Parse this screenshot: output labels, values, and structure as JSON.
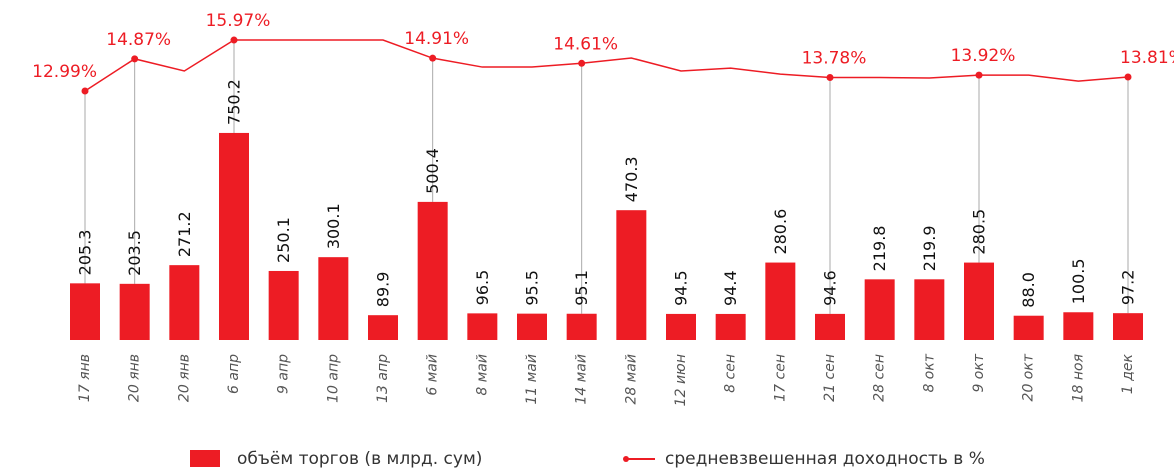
{
  "chart_data": {
    "type": "bar_line",
    "categories": [
      "17 янв",
      "20 янв",
      "20 янв",
      "6 апр",
      "9 апр",
      "10 апр",
      "13 апр",
      "6 май",
      "8 май",
      "11 май",
      "14 май",
      "28 май",
      "12 июн",
      "8 сен",
      "17 сен",
      "21 сен",
      "28 сен",
      "8 окт",
      "9 окт",
      "20 окт",
      "18 ноя",
      "1 дек"
    ],
    "series": [
      {
        "name": "объём торгов (в млрд. сум)",
        "color": "#ed1c24",
        "kind": "bar",
        "values": [
          205.3,
          203.5,
          271.2,
          750.2,
          250.1,
          300.1,
          89.9,
          500.4,
          96.5,
          95.5,
          95.1,
          470.3,
          94.5,
          94.4,
          280.6,
          94.6,
          219.8,
          219.9,
          280.5,
          88.0,
          100.5,
          97.2
        ],
        "value_labels": [
          "205.3",
          "203.5",
          "271.2",
          "750.2",
          "250.1",
          "300.1",
          "89.9",
          "500.4",
          "96.5",
          "95.5",
          "95.1",
          "470.3",
          "94.5",
          "94.4",
          "280.6",
          "94.6",
          "219.8",
          "219.9",
          "280.5",
          "88.0",
          "100.5",
          "97.2"
        ]
      },
      {
        "name": "средневзвешенная доходность в %",
        "color": "#ed1c24",
        "kind": "line",
        "values": [
          12.99,
          14.87,
          14.16,
          15.97,
          15.97,
          15.97,
          15.97,
          14.91,
          14.39,
          14.39,
          14.61,
          14.92,
          14.16,
          14.33,
          13.98,
          13.78,
          13.78,
          13.75,
          13.92,
          13.92,
          13.57,
          13.81
        ],
        "value_labels": [
          "12.99%",
          "14.87%",
          null,
          "15.97%",
          null,
          null,
          null,
          "14.91%",
          null,
          null,
          "14.61%",
          null,
          null,
          null,
          null,
          "13.78%",
          null,
          null,
          "13.92%",
          null,
          null,
          "13.81%"
        ]
      }
    ]
  }
}
